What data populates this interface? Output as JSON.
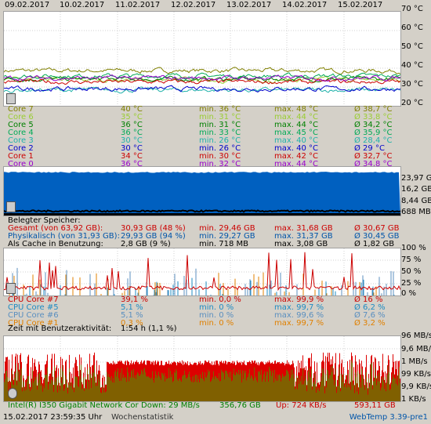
{
  "dates": [
    "09.02.2017",
    "10.02.2017",
    "11.02.2017",
    "12.02.2017",
    "13.02.2017",
    "14.02.2017",
    "15.02.2017"
  ],
  "temp": {
    "axis": [
      "70 °C",
      "60 °C",
      "50 °C",
      "40 °C",
      "30 °C",
      "20 °C"
    ],
    "rows": [
      {
        "name": "Core 7",
        "cur": "40 °C",
        "min": "min. 36 °C",
        "max": "max. 48 °C",
        "avg": "Ø 38,7 °C",
        "color": "#808000"
      },
      {
        "name": "Core 6",
        "cur": "35 °C",
        "min": "min. 31 °C",
        "max": "max. 44 °C",
        "avg": "Ø 33,8 °C",
        "color": "#9acd32"
      },
      {
        "name": "Core 5",
        "cur": "36 °C",
        "min": "min. 31 °C",
        "max": "max. 44 °C",
        "avg": "Ø 34,2 °C",
        "color": "#008000"
      },
      {
        "name": "Core 4",
        "cur": "36 °C",
        "min": "min. 33 °C",
        "max": "max. 45 °C",
        "avg": "Ø 35,9 °C",
        "color": "#00aa55"
      },
      {
        "name": "Core 3",
        "cur": "30 °C",
        "min": "min. 26 °C",
        "max": "max. 40 °C",
        "avg": "Ø 28,4 °C",
        "color": "#20b2aa"
      },
      {
        "name": "Core 2",
        "cur": "30 °C",
        "min": "min. 26 °C",
        "max": "max. 40 °C",
        "avg": "Ø 29 °C",
        "color": "#0000cc"
      },
      {
        "name": "Core 1",
        "cur": "34 °C",
        "min": "min. 30 °C",
        "max": "max. 42 °C",
        "avg": "Ø 32,7 °C",
        "color": "#cc0000"
      },
      {
        "name": "Core 0",
        "cur": "36 °C",
        "min": "min. 32 °C",
        "max": "max. 44 °C",
        "avg": "Ø 34,8 °C",
        "color": "#9900cc"
      }
    ]
  },
  "mem": {
    "axis": [
      "23,97 GB",
      "16,2 GB",
      "8,44 GB",
      "688 MB"
    ],
    "header": "Belegter Speicher:",
    "rows": [
      {
        "name": "Gesamt (von 63,92 GB):",
        "cur": "30,93 GB (48 %)",
        "min": "min. 29,46 GB",
        "max": "max. 31,68 GB",
        "avg": "Ø 30,67 GB",
        "color": "#cc0000"
      },
      {
        "name": "Physikalisch (von 31,93 GB):",
        "cur": "29,93 GB (94 %)",
        "min": "min. 29,27 GB",
        "max": "max. 31,37 GB",
        "avg": "Ø 30,45 GB",
        "color": "#0055aa"
      },
      {
        "name": "Als Cache in Benutzung:",
        "cur": "2,8 GB (9 %)",
        "min": "min. 718 MB",
        "max": "max. 3,08 GB",
        "avg": "Ø 1,82 GB",
        "color": "#000000"
      }
    ]
  },
  "cpu": {
    "axis": [
      "100 %",
      "75 %",
      "50 %",
      "25 %",
      "0 %"
    ],
    "rows": [
      {
        "name": "CPU Core #7",
        "cur": "39,1 %",
        "min": "min. 0,0 %",
        "max": "max. 99,9 %",
        "avg": "Ø 16 %",
        "color": "#cc0000"
      },
      {
        "name": "CPU Core #5",
        "cur": "5,1 %",
        "min": "min. 0 %",
        "max": "max. 99,7 %",
        "avg": "Ø 6,2 %",
        "color": "#1e8bc3"
      },
      {
        "name": "CPU Core #6",
        "cur": "5,1 %",
        "min": "min. 0 %",
        "max": "max. 99,6 %",
        "avg": "Ø 7,6 %",
        "color": "#5b8fbf"
      },
      {
        "name": "CPU Core #1",
        "cur": "0,3 %",
        "min": "min. 0 %",
        "max": "max. 99,7 %",
        "avg": "Ø 3,2 %",
        "color": "#e08000"
      }
    ],
    "activity_label": "Zeit mit Benutzeraktivität:",
    "activity_value": "1:54 h (1,1 %)"
  },
  "net": {
    "axis": [
      "96 MB/s",
      "9,6 MB/s",
      "1 MB/s",
      "99 KB/s",
      "9,9 KB/s",
      "1 KB/s"
    ],
    "adapter": "Intel(R) I350 Gigabit Network Cor",
    "down": "Down: 29 MB/s",
    "down_total": "356,76 GB",
    "up": "Up: 724 KB/s",
    "up_total": "593,11 GB"
  },
  "status": {
    "datetime": "15.02.2017 23:59:35 Uhr",
    "mode": "Wochenstatistik",
    "version": "WebTemp 3.39-pre1"
  }
}
